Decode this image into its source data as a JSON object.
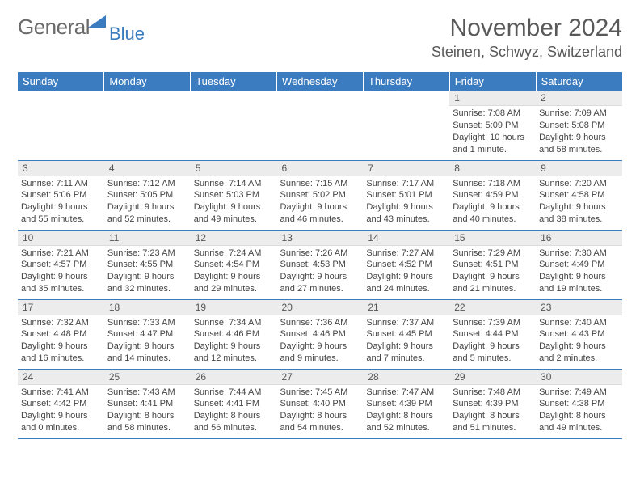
{
  "brand": {
    "text1": "General",
    "text2": "Blue",
    "text1_color": "#6a6a6a",
    "text2_color": "#3b7bbf",
    "triangle_color": "#3b7bbf"
  },
  "header": {
    "month_title": "November 2024",
    "location": "Steinen, Schwyz, Switzerland",
    "title_color": "#595959"
  },
  "calendar": {
    "header_bg": "#3b7bbf",
    "header_fg": "#ffffff",
    "cell_border": "#3b7bbf",
    "daynum_bg": "#ececec",
    "text_color": "#444444",
    "days": [
      "Sunday",
      "Monday",
      "Tuesday",
      "Wednesday",
      "Thursday",
      "Friday",
      "Saturday"
    ],
    "weeks": [
      [
        {
          "n": "",
          "sr": "",
          "ss": "",
          "dl": ""
        },
        {
          "n": "",
          "sr": "",
          "ss": "",
          "dl": ""
        },
        {
          "n": "",
          "sr": "",
          "ss": "",
          "dl": ""
        },
        {
          "n": "",
          "sr": "",
          "ss": "",
          "dl": ""
        },
        {
          "n": "",
          "sr": "",
          "ss": "",
          "dl": ""
        },
        {
          "n": "1",
          "sr": "Sunrise: 7:08 AM",
          "ss": "Sunset: 5:09 PM",
          "dl": "Daylight: 10 hours and 1 minute."
        },
        {
          "n": "2",
          "sr": "Sunrise: 7:09 AM",
          "ss": "Sunset: 5:08 PM",
          "dl": "Daylight: 9 hours and 58 minutes."
        }
      ],
      [
        {
          "n": "3",
          "sr": "Sunrise: 7:11 AM",
          "ss": "Sunset: 5:06 PM",
          "dl": "Daylight: 9 hours and 55 minutes."
        },
        {
          "n": "4",
          "sr": "Sunrise: 7:12 AM",
          "ss": "Sunset: 5:05 PM",
          "dl": "Daylight: 9 hours and 52 minutes."
        },
        {
          "n": "5",
          "sr": "Sunrise: 7:14 AM",
          "ss": "Sunset: 5:03 PM",
          "dl": "Daylight: 9 hours and 49 minutes."
        },
        {
          "n": "6",
          "sr": "Sunrise: 7:15 AM",
          "ss": "Sunset: 5:02 PM",
          "dl": "Daylight: 9 hours and 46 minutes."
        },
        {
          "n": "7",
          "sr": "Sunrise: 7:17 AM",
          "ss": "Sunset: 5:01 PM",
          "dl": "Daylight: 9 hours and 43 minutes."
        },
        {
          "n": "8",
          "sr": "Sunrise: 7:18 AM",
          "ss": "Sunset: 4:59 PM",
          "dl": "Daylight: 9 hours and 40 minutes."
        },
        {
          "n": "9",
          "sr": "Sunrise: 7:20 AM",
          "ss": "Sunset: 4:58 PM",
          "dl": "Daylight: 9 hours and 38 minutes."
        }
      ],
      [
        {
          "n": "10",
          "sr": "Sunrise: 7:21 AM",
          "ss": "Sunset: 4:57 PM",
          "dl": "Daylight: 9 hours and 35 minutes."
        },
        {
          "n": "11",
          "sr": "Sunrise: 7:23 AM",
          "ss": "Sunset: 4:55 PM",
          "dl": "Daylight: 9 hours and 32 minutes."
        },
        {
          "n": "12",
          "sr": "Sunrise: 7:24 AM",
          "ss": "Sunset: 4:54 PM",
          "dl": "Daylight: 9 hours and 29 minutes."
        },
        {
          "n": "13",
          "sr": "Sunrise: 7:26 AM",
          "ss": "Sunset: 4:53 PM",
          "dl": "Daylight: 9 hours and 27 minutes."
        },
        {
          "n": "14",
          "sr": "Sunrise: 7:27 AM",
          "ss": "Sunset: 4:52 PM",
          "dl": "Daylight: 9 hours and 24 minutes."
        },
        {
          "n": "15",
          "sr": "Sunrise: 7:29 AM",
          "ss": "Sunset: 4:51 PM",
          "dl": "Daylight: 9 hours and 21 minutes."
        },
        {
          "n": "16",
          "sr": "Sunrise: 7:30 AM",
          "ss": "Sunset: 4:49 PM",
          "dl": "Daylight: 9 hours and 19 minutes."
        }
      ],
      [
        {
          "n": "17",
          "sr": "Sunrise: 7:32 AM",
          "ss": "Sunset: 4:48 PM",
          "dl": "Daylight: 9 hours and 16 minutes."
        },
        {
          "n": "18",
          "sr": "Sunrise: 7:33 AM",
          "ss": "Sunset: 4:47 PM",
          "dl": "Daylight: 9 hours and 14 minutes."
        },
        {
          "n": "19",
          "sr": "Sunrise: 7:34 AM",
          "ss": "Sunset: 4:46 PM",
          "dl": "Daylight: 9 hours and 12 minutes."
        },
        {
          "n": "20",
          "sr": "Sunrise: 7:36 AM",
          "ss": "Sunset: 4:46 PM",
          "dl": "Daylight: 9 hours and 9 minutes."
        },
        {
          "n": "21",
          "sr": "Sunrise: 7:37 AM",
          "ss": "Sunset: 4:45 PM",
          "dl": "Daylight: 9 hours and 7 minutes."
        },
        {
          "n": "22",
          "sr": "Sunrise: 7:39 AM",
          "ss": "Sunset: 4:44 PM",
          "dl": "Daylight: 9 hours and 5 minutes."
        },
        {
          "n": "23",
          "sr": "Sunrise: 7:40 AM",
          "ss": "Sunset: 4:43 PM",
          "dl": "Daylight: 9 hours and 2 minutes."
        }
      ],
      [
        {
          "n": "24",
          "sr": "Sunrise: 7:41 AM",
          "ss": "Sunset: 4:42 PM",
          "dl": "Daylight: 9 hours and 0 minutes."
        },
        {
          "n": "25",
          "sr": "Sunrise: 7:43 AM",
          "ss": "Sunset: 4:41 PM",
          "dl": "Daylight: 8 hours and 58 minutes."
        },
        {
          "n": "26",
          "sr": "Sunrise: 7:44 AM",
          "ss": "Sunset: 4:41 PM",
          "dl": "Daylight: 8 hours and 56 minutes."
        },
        {
          "n": "27",
          "sr": "Sunrise: 7:45 AM",
          "ss": "Sunset: 4:40 PM",
          "dl": "Daylight: 8 hours and 54 minutes."
        },
        {
          "n": "28",
          "sr": "Sunrise: 7:47 AM",
          "ss": "Sunset: 4:39 PM",
          "dl": "Daylight: 8 hours and 52 minutes."
        },
        {
          "n": "29",
          "sr": "Sunrise: 7:48 AM",
          "ss": "Sunset: 4:39 PM",
          "dl": "Daylight: 8 hours and 51 minutes."
        },
        {
          "n": "30",
          "sr": "Sunrise: 7:49 AM",
          "ss": "Sunset: 4:38 PM",
          "dl": "Daylight: 8 hours and 49 minutes."
        }
      ]
    ]
  }
}
